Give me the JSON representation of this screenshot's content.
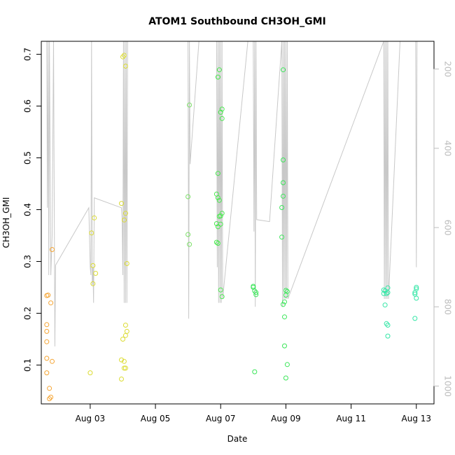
{
  "chart_data": {
    "type": "scatter",
    "title": "ATOM1 Southbound CH3OH_GMI",
    "xlabel": "Date",
    "ylabel": "CH3OH_GMI",
    "xlim": [
      "2016-08-01T12:00",
      "2016-08-13T13:00"
    ],
    "ylim": [
      0.025,
      0.725
    ],
    "x_ticks": [
      "Aug 03",
      "Aug 05",
      "Aug 07",
      "Aug 09",
      "Aug 11",
      "Aug 13"
    ],
    "x_tick_dates": [
      "2016-08-03",
      "2016-08-05",
      "2016-08-07",
      "2016-08-09",
      "2016-08-11",
      "2016-08-13"
    ],
    "y_ticks": [
      0.1,
      0.2,
      0.3,
      0.4,
      0.5,
      0.6,
      0.7
    ],
    "right_axis": {
      "label": "",
      "ticks": [
        200,
        400,
        600,
        800,
        1000
      ],
      "range_top": 130,
      "range_bottom": 1045,
      "inverted": true,
      "color": "#bdbdbd"
    },
    "points": [
      {
        "x": "2016-08-01T16:00",
        "y": 0.234,
        "c": "#f5a534"
      },
      {
        "x": "2016-08-01T16:00",
        "y": 0.178,
        "c": "#f5a534"
      },
      {
        "x": "2016-08-01T16:00",
        "y": 0.165,
        "c": "#f5a534"
      },
      {
        "x": "2016-08-01T16:00",
        "y": 0.145,
        "c": "#f5a534"
      },
      {
        "x": "2016-08-01T16:00",
        "y": 0.113,
        "c": "#f5a534"
      },
      {
        "x": "2016-08-01T16:00",
        "y": 0.085,
        "c": "#f5a534"
      },
      {
        "x": "2016-08-01T17:00",
        "y": 0.235,
        "c": "#f5a534"
      },
      {
        "x": "2016-08-01T18:00",
        "y": 0.055,
        "c": "#f5a534"
      },
      {
        "x": "2016-08-01T18:00",
        "y": 0.035,
        "c": "#f5a534"
      },
      {
        "x": "2016-08-01T19:00",
        "y": 0.038,
        "c": "#f5a534"
      },
      {
        "x": "2016-08-01T19:00",
        "y": 0.22,
        "c": "#f5a534"
      },
      {
        "x": "2016-08-01T20:00",
        "y": 0.107,
        "c": "#f5a534"
      },
      {
        "x": "2016-08-01T20:00",
        "y": 0.323,
        "c": "#f5a534"
      },
      {
        "x": "2016-08-03T00:00",
        "y": 0.085,
        "c": "#dcdc34"
      },
      {
        "x": "2016-08-03T01:00",
        "y": 0.355,
        "c": "#dcdc34"
      },
      {
        "x": "2016-08-03T02:00",
        "y": 0.292,
        "c": "#dcdc34"
      },
      {
        "x": "2016-08-03T02:00",
        "y": 0.257,
        "c": "#dcdc34"
      },
      {
        "x": "2016-08-03T03:00",
        "y": 0.384,
        "c": "#dcdc34"
      },
      {
        "x": "2016-08-03T04:00",
        "y": 0.277,
        "c": "#dcdc34"
      },
      {
        "x": "2016-08-03T23:00",
        "y": 0.073,
        "c": "#dcdc34"
      },
      {
        "x": "2016-08-03T23:00",
        "y": 0.11,
        "c": "#dcdc34"
      },
      {
        "x": "2016-08-03T23:00",
        "y": 0.412,
        "c": "#dcdc34"
      },
      {
        "x": "2016-08-04T00:00",
        "y": 0.15,
        "c": "#dcdc34"
      },
      {
        "x": "2016-08-04T00:00",
        "y": 0.695,
        "c": "#dcdc34"
      },
      {
        "x": "2016-08-04T01:00",
        "y": 0.094,
        "c": "#dcdc34"
      },
      {
        "x": "2016-08-04T01:00",
        "y": 0.107,
        "c": "#dcdc34"
      },
      {
        "x": "2016-08-04T01:00",
        "y": 0.38,
        "c": "#dcdc34"
      },
      {
        "x": "2016-08-04T01:00",
        "y": 0.698,
        "c": "#dcdc34"
      },
      {
        "x": "2016-08-04T02:00",
        "y": 0.094,
        "c": "#dcdc34"
      },
      {
        "x": "2016-08-04T02:00",
        "y": 0.157,
        "c": "#dcdc34"
      },
      {
        "x": "2016-08-04T02:00",
        "y": 0.177,
        "c": "#dcdc34"
      },
      {
        "x": "2016-08-04T02:00",
        "y": 0.393,
        "c": "#dcdc34"
      },
      {
        "x": "2016-08-04T02:00",
        "y": 0.677,
        "c": "#dcdc34"
      },
      {
        "x": "2016-08-04T03:00",
        "y": 0.165,
        "c": "#dcdc34"
      },
      {
        "x": "2016-08-04T03:00",
        "y": 0.296,
        "c": "#dcdc34"
      },
      {
        "x": "2016-08-06T00:00",
        "y": 0.425,
        "c": "#7fe06b"
      },
      {
        "x": "2016-08-06T00:00",
        "y": 0.352,
        "c": "#7fe06b"
      },
      {
        "x": "2016-08-06T01:00",
        "y": 0.333,
        "c": "#7fe06b"
      },
      {
        "x": "2016-08-06T01:00",
        "y": 0.602,
        "c": "#7fe06b"
      },
      {
        "x": "2016-08-06T21:00",
        "y": 0.373,
        "c": "#47e84c"
      },
      {
        "x": "2016-08-06T21:00",
        "y": 0.43,
        "c": "#47e84c"
      },
      {
        "x": "2016-08-06T21:00",
        "y": 0.337,
        "c": "#47e84c"
      },
      {
        "x": "2016-08-06T22:00",
        "y": 0.335,
        "c": "#47e84c"
      },
      {
        "x": "2016-08-06T22:00",
        "y": 0.367,
        "c": "#47e84c"
      },
      {
        "x": "2016-08-06T22:00",
        "y": 0.423,
        "c": "#47e84c"
      },
      {
        "x": "2016-08-06T22:00",
        "y": 0.656,
        "c": "#47e84c"
      },
      {
        "x": "2016-08-06T22:00",
        "y": 0.47,
        "c": "#47e84c"
      },
      {
        "x": "2016-08-06T23:00",
        "y": 0.387,
        "c": "#47e84c"
      },
      {
        "x": "2016-08-06T23:00",
        "y": 0.67,
        "c": "#47e84c"
      },
      {
        "x": "2016-08-06T23:00",
        "y": 0.418,
        "c": "#47e84c"
      },
      {
        "x": "2016-08-07T00:00",
        "y": 0.588,
        "c": "#47e84c"
      },
      {
        "x": "2016-08-07T00:00",
        "y": 0.372,
        "c": "#47e84c"
      },
      {
        "x": "2016-08-07T00:00",
        "y": 0.388,
        "c": "#47e84c"
      },
      {
        "x": "2016-08-07T00:00",
        "y": 0.245,
        "c": "#47e84c"
      },
      {
        "x": "2016-08-07T01:00",
        "y": 0.594,
        "c": "#47e84c"
      },
      {
        "x": "2016-08-07T01:00",
        "y": 0.576,
        "c": "#47e84c"
      },
      {
        "x": "2016-08-07T01:00",
        "y": 0.393,
        "c": "#47e84c"
      },
      {
        "x": "2016-08-07T01:00",
        "y": 0.232,
        "c": "#47e84c"
      },
      {
        "x": "2016-08-08T00:00",
        "y": 0.25,
        "c": "#3ce65a"
      },
      {
        "x": "2016-08-08T00:00",
        "y": 0.252,
        "c": "#3ce65a"
      },
      {
        "x": "2016-08-08T01:00",
        "y": 0.243,
        "c": "#3ce65a"
      },
      {
        "x": "2016-08-08T01:00",
        "y": 0.087,
        "c": "#3ce65a"
      },
      {
        "x": "2016-08-08T02:00",
        "y": 0.236,
        "c": "#3ce65a"
      },
      {
        "x": "2016-08-08T02:00",
        "y": 0.24,
        "c": "#3ce65a"
      },
      {
        "x": "2016-08-08T21:00",
        "y": 0.404,
        "c": "#3ce65a"
      },
      {
        "x": "2016-08-08T21:00",
        "y": 0.347,
        "c": "#3ce65a"
      },
      {
        "x": "2016-08-08T22:00",
        "y": 0.67,
        "c": "#3ce65a"
      },
      {
        "x": "2016-08-08T22:00",
        "y": 0.496,
        "c": "#3ce65a"
      },
      {
        "x": "2016-08-08T22:00",
        "y": 0.452,
        "c": "#3ce65a"
      },
      {
        "x": "2016-08-08T22:00",
        "y": 0.426,
        "c": "#3ce65a"
      },
      {
        "x": "2016-08-08T22:00",
        "y": 0.217,
        "c": "#3ce65a"
      },
      {
        "x": "2016-08-08T23:00",
        "y": 0.193,
        "c": "#3ce65a"
      },
      {
        "x": "2016-08-08T23:00",
        "y": 0.137,
        "c": "#3ce65a"
      },
      {
        "x": "2016-08-08T23:00",
        "y": 0.222,
        "c": "#3ce65a"
      },
      {
        "x": "2016-08-09T00:00",
        "y": 0.244,
        "c": "#3ce65a"
      },
      {
        "x": "2016-08-09T00:00",
        "y": 0.075,
        "c": "#3ce65a"
      },
      {
        "x": "2016-08-09T00:00",
        "y": 0.235,
        "c": "#3ce65a"
      },
      {
        "x": "2016-08-09T01:00",
        "y": 0.242,
        "c": "#3ce65a"
      },
      {
        "x": "2016-08-09T01:00",
        "y": 0.101,
        "c": "#3ce65a"
      },
      {
        "x": "2016-08-12T00:00",
        "y": 0.245,
        "c": "#34e6a6"
      },
      {
        "x": "2016-08-12T00:00",
        "y": 0.238,
        "c": "#34e6a6"
      },
      {
        "x": "2016-08-12T01:00",
        "y": 0.216,
        "c": "#34e6a6"
      },
      {
        "x": "2016-08-12T01:00",
        "y": 0.243,
        "c": "#34e6a6"
      },
      {
        "x": "2016-08-12T02:00",
        "y": 0.18,
        "c": "#34e6a6"
      },
      {
        "x": "2016-08-12T02:00",
        "y": 0.238,
        "c": "#34e6a6"
      },
      {
        "x": "2016-08-12T03:00",
        "y": 0.249,
        "c": "#34e6a6"
      },
      {
        "x": "2016-08-12T03:00",
        "y": 0.156,
        "c": "#34e6a6"
      },
      {
        "x": "2016-08-12T03:00",
        "y": 0.177,
        "c": "#34e6a6"
      },
      {
        "x": "2016-08-12T03:00",
        "y": 0.24,
        "c": "#34e6a6"
      },
      {
        "x": "2016-08-12T23:00",
        "y": 0.237,
        "c": "#34e6a6"
      },
      {
        "x": "2016-08-12T23:00",
        "y": 0.19,
        "c": "#34e6a6"
      },
      {
        "x": "2016-08-12T23:00",
        "y": 0.24,
        "c": "#34e6a6"
      },
      {
        "x": "2016-08-13T00:00",
        "y": 0.25,
        "c": "#34e6a6"
      },
      {
        "x": "2016-08-13T00:00",
        "y": 0.247,
        "c": "#34e6a6"
      },
      {
        "x": "2016-08-13T00:00",
        "y": 0.229,
        "c": "#34e6a6"
      }
    ],
    "pressure_line": {
      "color": "#c8c8c8",
      "x": [
        "2016-08-01T16:00",
        "2016-08-01T16:30",
        "2016-08-01T17:00",
        "2016-08-01T17:30",
        "2016-08-01T18:00",
        "2016-08-01T19:00",
        "2016-08-01T20:00",
        "2016-08-01T21:00",
        "2016-08-01T22:00",
        "2016-08-01T22:30",
        "2016-08-02T23:00",
        "2016-08-03T00:00",
        "2016-08-03T00:30",
        "2016-08-03T01:00",
        "2016-08-03T01:30",
        "2016-08-03T02:00",
        "2016-08-03T02:30",
        "2016-08-03T03:00",
        "2016-08-03T23:00",
        "2016-08-03T23:30",
        "2016-08-04T00:00",
        "2016-08-04T00:30",
        "2016-08-04T01:00",
        "2016-08-04T01:30",
        "2016-08-04T02:00",
        "2016-08-04T02:30",
        "2016-08-04T03:00",
        "2016-08-04T03:30",
        "2016-08-06T00:00",
        "2016-08-06T00:30",
        "2016-08-06T01:00",
        "2016-08-06T01:30",
        "2016-08-06T08:00",
        "2016-08-06T21:00",
        "2016-08-06T21:30",
        "2016-08-06T22:00",
        "2016-08-06T22:30",
        "2016-08-06T23:00",
        "2016-08-06T23:30",
        "2016-08-07T00:00",
        "2016-08-07T00:30",
        "2016-08-07T01:00",
        "2016-08-07T01:30",
        "2016-08-07T20:00",
        "2016-08-08T00:00",
        "2016-08-08T00:30",
        "2016-08-08T01:00",
        "2016-08-08T01:30",
        "2016-08-08T02:00",
        "2016-08-08T02:30",
        "2016-08-08T12:00",
        "2016-08-08T21:00",
        "2016-08-08T21:30",
        "2016-08-08T22:00",
        "2016-08-08T22:30",
        "2016-08-08T23:00",
        "2016-08-08T23:30",
        "2016-08-09T00:00",
        "2016-08-09T00:30",
        "2016-08-09T01:00",
        "2016-08-09T01:30",
        "2016-08-12T00:00",
        "2016-08-12T00:30",
        "2016-08-12T01:00",
        "2016-08-12T01:30",
        "2016-08-12T02:00",
        "2016-08-12T02:30",
        "2016-08-12T03:00",
        "2016-08-12T03:30",
        "2016-08-12T12:00",
        "2016-08-12T23:00",
        "2016-08-12T23:30",
        "2016-08-13T00:00",
        "2016-08-13T00:30"
      ],
      "p": [
        130,
        550,
        130,
        720,
        130,
        720,
        620,
        130,
        900,
        695,
        550,
        700,
        720,
        130,
        745,
        700,
        790,
        525,
        550,
        580,
        720,
        130,
        790,
        130,
        790,
        130,
        790,
        130,
        130,
        830,
        130,
        440,
        130,
        130,
        700,
        130,
        790,
        130,
        790,
        130,
        790,
        130,
        780,
        130,
        130,
        610,
        130,
        800,
        130,
        580,
        585,
        130,
        800,
        130,
        780,
        130,
        780,
        130,
        780,
        130,
        780,
        130,
        780,
        130,
        780,
        130,
        780,
        130,
        780,
        130,
        130,
        130,
        700,
        130
      ]
    }
  }
}
